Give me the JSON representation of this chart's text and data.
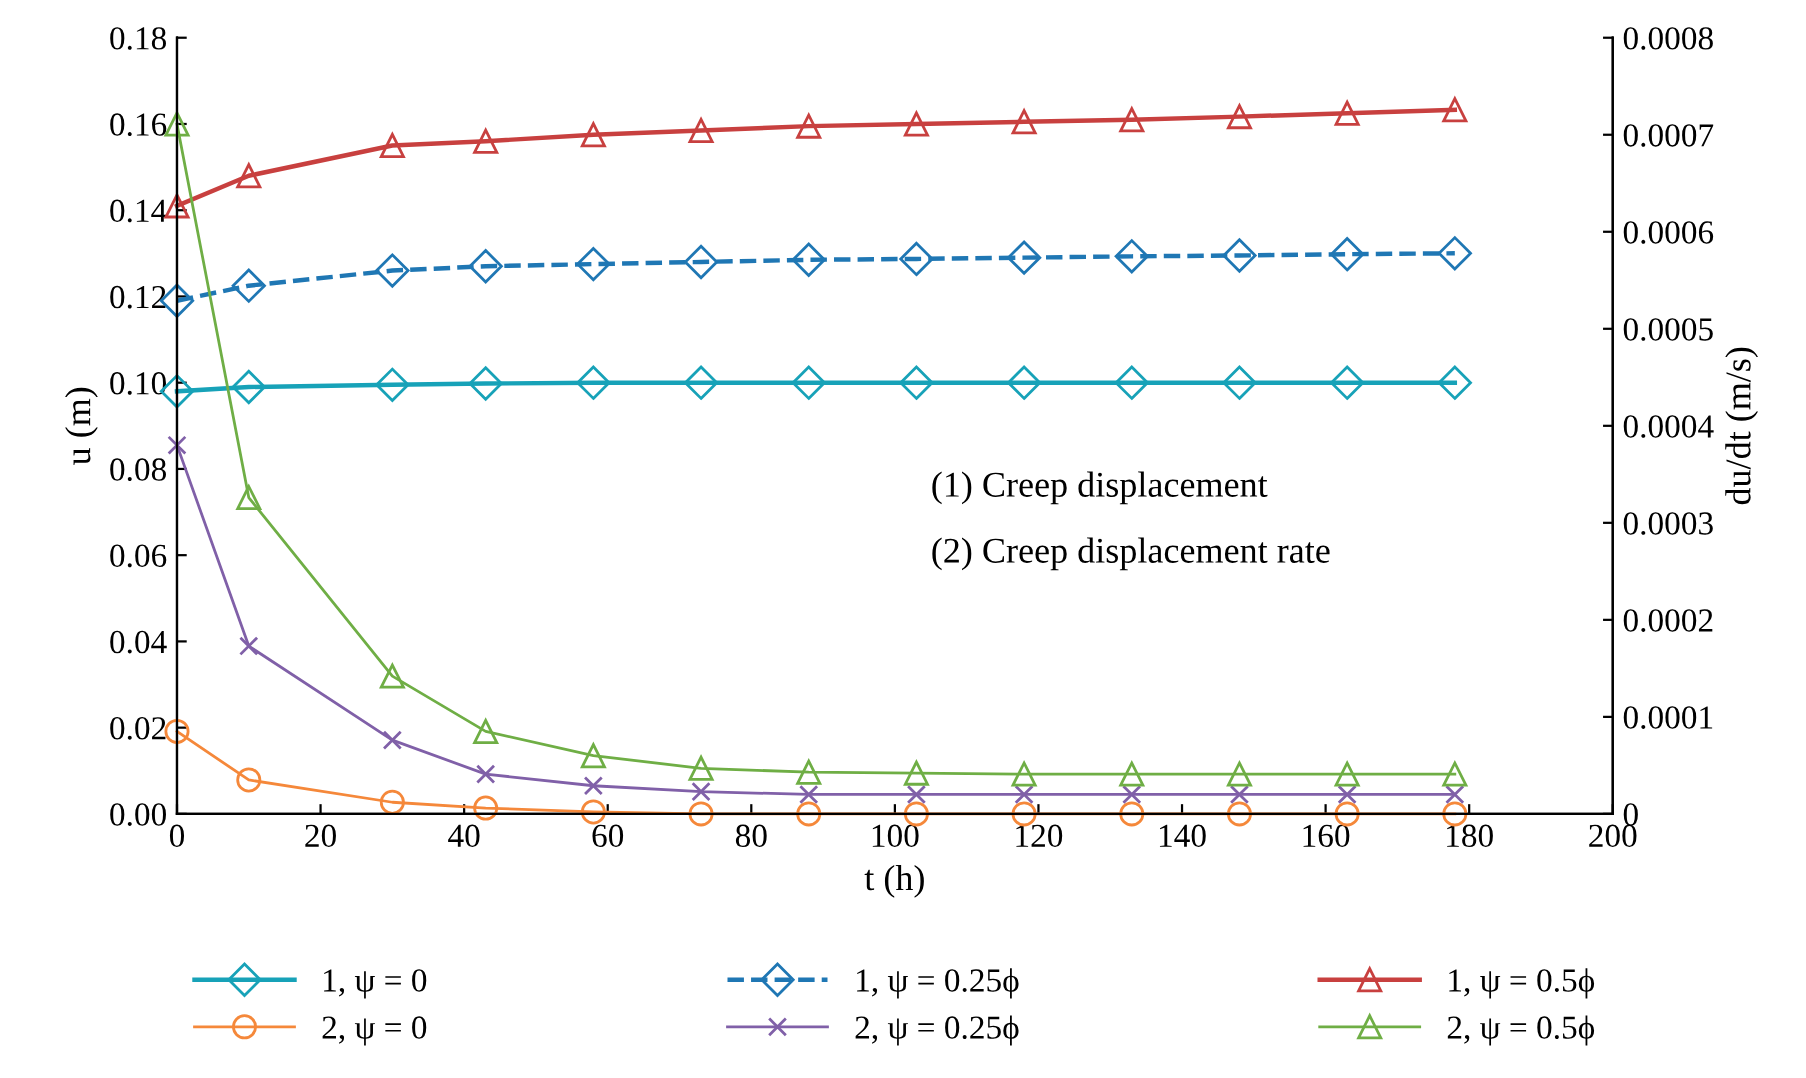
{
  "chart_data": {
    "type": "line",
    "xlabel": "t (h)",
    "ylabel": "u (m)",
    "y2label": "du/dt (m/s)",
    "x": [
      0,
      10,
      30,
      43,
      58,
      73,
      88,
      103,
      118,
      133,
      148,
      163,
      178
    ],
    "xlim": [
      0,
      200
    ],
    "xticks": [
      0,
      20,
      40,
      60,
      80,
      100,
      120,
      140,
      160,
      180,
      200
    ],
    "ylim": [
      0,
      0.18
    ],
    "yticks": [
      {
        "value": 0,
        "label": "0.00"
      },
      {
        "value": 0.02,
        "label": "0.02"
      },
      {
        "value": 0.04,
        "label": "0.04"
      },
      {
        "value": 0.06,
        "label": "0.06"
      },
      {
        "value": 0.08,
        "label": "0.08"
      },
      {
        "value": 0.1,
        "label": "0.10"
      },
      {
        "value": 0.12,
        "label": "0.12"
      },
      {
        "value": 0.14,
        "label": "0.14"
      },
      {
        "value": 0.16,
        "label": "0.16"
      },
      {
        "value": 0.18,
        "label": "0.18"
      }
    ],
    "y2lim": [
      0,
      0.0008
    ],
    "y2ticks": [
      0,
      0.0001,
      0.0002,
      0.0003,
      0.0004,
      0.0005,
      0.0006,
      0.0007,
      0.0008
    ],
    "grid": false,
    "legend": "bottom",
    "annotations": [
      "(1) Creep displacement",
      "(2) Creep displacement rate"
    ],
    "series": [
      {
        "name": "1, ψ = 0",
        "color": "#17a2b8",
        "marker": "diamond",
        "line_style": "solid",
        "values": [
          0.098,
          0.099,
          0.0995,
          0.0998,
          0.1,
          0.1,
          0.1,
          0.1,
          0.1,
          0.1,
          0.1,
          0.1,
          0.1
        ]
      },
      {
        "name": "1, ψ = 0.25ϕ",
        "color": "#1f77b4",
        "marker": "diamond",
        "line_style": "dashed",
        "values": [
          0.119,
          0.1225,
          0.126,
          0.127,
          0.1275,
          0.128,
          0.1285,
          0.1287,
          0.129,
          0.1293,
          0.1295,
          0.1298,
          0.13
        ]
      },
      {
        "name": "1, ψ = 0.5ϕ",
        "color": "#c8403f",
        "marker": "triangle",
        "line_style": "solid",
        "values": [
          0.141,
          0.148,
          0.155,
          0.156,
          0.1575,
          0.1585,
          0.1595,
          0.16,
          0.1605,
          0.161,
          0.1617,
          0.1625,
          0.1633
        ]
      },
      {
        "name": "2, ψ = 0",
        "color": "#f5883a",
        "marker": "circle",
        "line_style": "solid",
        "axis": "y2",
        "values": [
          8.5e-05,
          3.5e-05,
          1.2e-05,
          6e-06,
          2e-06,
          0,
          0,
          0,
          0,
          0,
          0,
          0,
          0
        ]
      },
      {
        "name": "2, ψ = 0.25ϕ",
        "color": "#8060a8",
        "marker": "cross",
        "line_style": "solid",
        "axis": "y2",
        "values": [
          0.00038,
          0.000173,
          7.6e-05,
          4.1e-05,
          2.9e-05,
          2.3e-05,
          2e-05,
          2e-05,
          2e-05,
          2e-05,
          2e-05,
          2e-05,
          2e-05
        ]
      },
      {
        "name": "2, ψ = 0.5ϕ",
        "color": "#6fae45",
        "marker": "triangle",
        "line_style": "solid",
        "axis": "y2",
        "values": [
          0.000711,
          0.000326,
          0.000142,
          8.5e-05,
          6e-05,
          4.7e-05,
          4.3e-05,
          4.2e-05,
          4.1e-05,
          4.1e-05,
          4.1e-05,
          4.1e-05,
          4.1e-05
        ]
      }
    ]
  }
}
